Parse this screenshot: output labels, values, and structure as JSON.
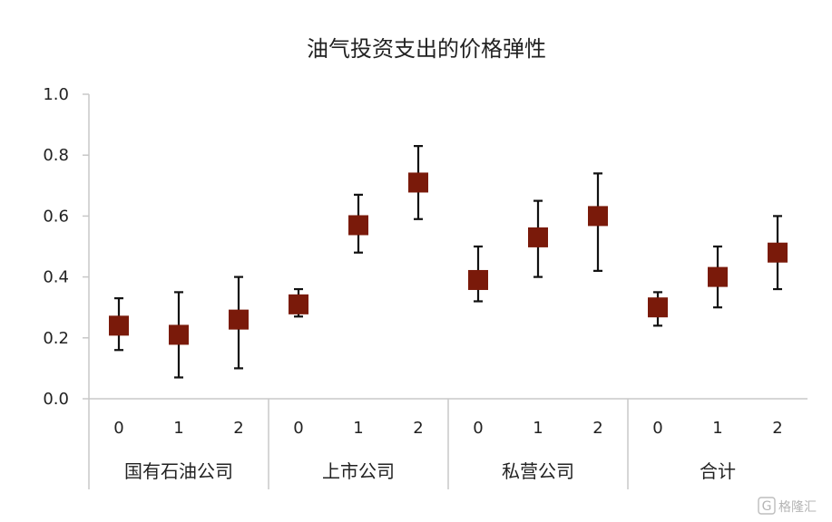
{
  "chart_data": {
    "type": "scatter",
    "title": "油气投资支出的价格弹性",
    "xlabel": "",
    "ylabel": "",
    "ylim": [
      0.0,
      1.0
    ],
    "yticks": [
      "0.0",
      "0.2",
      "0.4",
      "0.6",
      "0.8",
      "1.0"
    ],
    "grid": false,
    "legend": "none",
    "marker_color": "#7a1a0a",
    "groups": [
      {
        "name": "国有石油公司",
        "points": [
          {
            "x": "0",
            "y": 0.24,
            "low": 0.16,
            "high": 0.33
          },
          {
            "x": "1",
            "y": 0.21,
            "low": 0.07,
            "high": 0.35
          },
          {
            "x": "2",
            "y": 0.26,
            "low": 0.1,
            "high": 0.4
          }
        ]
      },
      {
        "name": "上市公司",
        "points": [
          {
            "x": "0",
            "y": 0.31,
            "low": 0.27,
            "high": 0.36
          },
          {
            "x": "1",
            "y": 0.57,
            "low": 0.48,
            "high": 0.67
          },
          {
            "x": "2",
            "y": 0.71,
            "low": 0.59,
            "high": 0.83
          }
        ]
      },
      {
        "name": "私营公司",
        "points": [
          {
            "x": "0",
            "y": 0.39,
            "low": 0.32,
            "high": 0.5
          },
          {
            "x": "1",
            "y": 0.53,
            "low": 0.4,
            "high": 0.65
          },
          {
            "x": "2",
            "y": 0.6,
            "low": 0.42,
            "high": 0.74
          }
        ]
      },
      {
        "name": "合计",
        "points": [
          {
            "x": "0",
            "y": 0.3,
            "low": 0.24,
            "high": 0.35
          },
          {
            "x": "1",
            "y": 0.4,
            "low": 0.3,
            "high": 0.5
          },
          {
            "x": "2",
            "y": 0.48,
            "low": 0.36,
            "high": 0.6
          }
        ]
      }
    ]
  },
  "watermark": {
    "text": "格隆汇",
    "logo_text": "G"
  }
}
